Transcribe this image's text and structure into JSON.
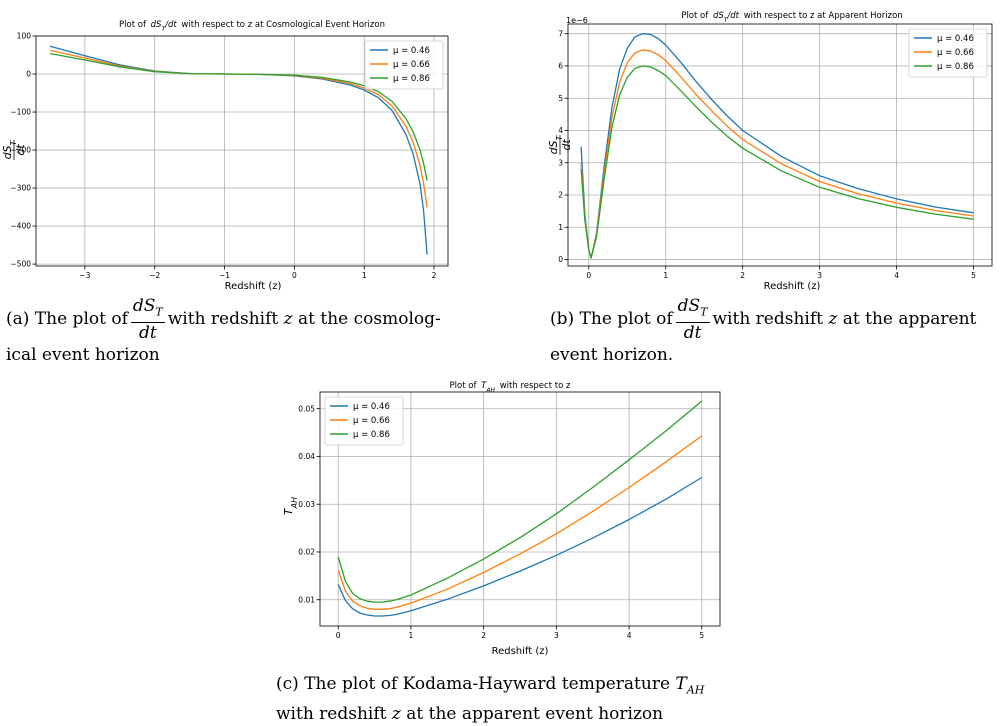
{
  "chart_data": [
    {
      "type": "line",
      "title_prefix": "Plot of",
      "title_sym_num": "dS",
      "title_sym_sub": "T",
      "title_sym_den": "dt",
      "title_suffix": "with respect to z at Cosmological Event Horizon",
      "xlabel": "Redshift (z)",
      "ylabel_num": "dS",
      "ylabel_sub": "T",
      "ylabel_den": "dt",
      "xlim": [
        -3.7,
        2.2
      ],
      "ylim": [
        -505,
        100
      ],
      "xticks": [
        -3,
        -2,
        -1,
        0,
        1,
        2
      ],
      "xtick_labels": [
        "−3",
        "−2",
        "−1",
        "0",
        "1",
        "2"
      ],
      "yticks": [
        100,
        0,
        -100,
        -200,
        -300,
        -400,
        -500
      ],
      "ytick_labels": [
        "100",
        "0",
        "−100",
        "−200",
        "−300",
        "−400",
        "−500"
      ],
      "grid": true,
      "legend_position": "upper right",
      "series": [
        {
          "name": "μ = 0.46",
          "color": "#1f77b4",
          "x": [
            -3.5,
            -3.0,
            -2.5,
            -2.0,
            -1.5,
            -1.0,
            -0.5,
            0.0,
            0.4,
            0.8,
            1.0,
            1.2,
            1.4,
            1.6,
            1.7,
            1.8,
            1.85,
            1.9
          ],
          "y": [
            73,
            48,
            24,
            8,
            1,
            0,
            -1,
            -5,
            -13,
            -29,
            -42,
            -62,
            -96,
            -160,
            -210,
            -290,
            -360,
            -475
          ]
        },
        {
          "name": "μ = 0.66",
          "color": "#ff7f0e",
          "x": [
            -3.5,
            -3.0,
            -2.5,
            -2.0,
            -1.5,
            -1.0,
            -0.5,
            0.0,
            0.4,
            0.8,
            1.0,
            1.2,
            1.4,
            1.6,
            1.7,
            1.8,
            1.85,
            1.9
          ],
          "y": [
            62,
            42,
            21,
            7,
            1,
            0,
            -1,
            -4,
            -11,
            -25,
            -37,
            -54,
            -84,
            -138,
            -180,
            -240,
            -288,
            -350
          ]
        },
        {
          "name": "μ = 0.86",
          "color": "#2ca02c",
          "x": [
            -3.5,
            -3.0,
            -2.5,
            -2.0,
            -1.5,
            -1.0,
            -0.5,
            0.0,
            0.4,
            0.8,
            1.0,
            1.2,
            1.4,
            1.6,
            1.7,
            1.8,
            1.85,
            1.9
          ],
          "y": [
            54,
            37,
            19,
            6,
            1,
            0,
            -1,
            -3,
            -9,
            -21,
            -31,
            -46,
            -72,
            -118,
            -152,
            -200,
            -235,
            -280
          ]
        }
      ]
    },
    {
      "type": "line",
      "title_prefix": "Plot of",
      "title_sym_num": "dS",
      "title_sym_sub": "T",
      "title_sym_den": "dt",
      "title_suffix": "with respect to z at Apparent Horizon",
      "xlabel": "Redshift (z)",
      "ylabel_num": "dS",
      "ylabel_sub": "T",
      "ylabel_den": "dt",
      "offset_text": "1e−6",
      "xlim": [
        -0.27,
        5.24
      ],
      "ylim": [
        -0.2,
        7.3
      ],
      "xticks": [
        0,
        1,
        2,
        3,
        4,
        5
      ],
      "xtick_labels": [
        "0",
        "1",
        "2",
        "3",
        "4",
        "5"
      ],
      "yticks": [
        0,
        1,
        2,
        3,
        4,
        5,
        6,
        7
      ],
      "ytick_labels": [
        "0",
        "1",
        "2",
        "3",
        "4",
        "5",
        "6",
        "7"
      ],
      "grid": true,
      "legend_position": "upper right",
      "series": [
        {
          "name": "μ = 0.46",
          "color": "#1f77b4",
          "x": [
            -0.1,
            -0.05,
            0.0,
            0.03,
            0.1,
            0.2,
            0.3,
            0.4,
            0.5,
            0.6,
            0.7,
            0.8,
            0.9,
            1.0,
            1.2,
            1.4,
            1.6,
            1.8,
            2.0,
            2.5,
            3.0,
            3.5,
            4.0,
            4.5,
            5.0
          ],
          "y": [
            3.5,
            1.4,
            0.3,
            0.05,
            0.8,
            2.9,
            4.7,
            5.9,
            6.55,
            6.9,
            7.0,
            6.98,
            6.85,
            6.65,
            6.1,
            5.5,
            4.95,
            4.45,
            4.0,
            3.2,
            2.6,
            2.2,
            1.88,
            1.63,
            1.45
          ]
        },
        {
          "name": "μ = 0.66",
          "color": "#ff7f0e",
          "x": [
            -0.1,
            -0.05,
            0.0,
            0.03,
            0.1,
            0.2,
            0.3,
            0.4,
            0.5,
            0.6,
            0.7,
            0.8,
            0.9,
            1.0,
            1.2,
            1.4,
            1.6,
            1.8,
            2.0,
            2.5,
            3.0,
            3.5,
            4.0,
            4.5,
            5.0
          ],
          "y": [
            3.0,
            1.3,
            0.3,
            0.05,
            0.75,
            2.7,
            4.4,
            5.5,
            6.1,
            6.4,
            6.5,
            6.47,
            6.35,
            6.17,
            5.65,
            5.1,
            4.6,
            4.13,
            3.72,
            2.97,
            2.42,
            2.04,
            1.75,
            1.52,
            1.35
          ]
        },
        {
          "name": "μ = 0.86",
          "color": "#2ca02c",
          "x": [
            -0.1,
            -0.05,
            0.0,
            0.03,
            0.1,
            0.2,
            0.3,
            0.4,
            0.5,
            0.6,
            0.7,
            0.8,
            0.9,
            1.0,
            1.2,
            1.4,
            1.6,
            1.8,
            2.0,
            2.5,
            3.0,
            3.5,
            4.0,
            4.5,
            5.0
          ],
          "y": [
            2.8,
            1.2,
            0.3,
            0.05,
            0.7,
            2.5,
            4.1,
            5.1,
            5.65,
            5.92,
            6.0,
            5.97,
            5.86,
            5.7,
            5.22,
            4.72,
            4.25,
            3.82,
            3.45,
            2.75,
            2.24,
            1.89,
            1.62,
            1.41,
            1.25
          ]
        }
      ]
    },
    {
      "type": "line",
      "title_prefix": "Plot of",
      "title_sym": "T",
      "title_sym_sub": "AH",
      "title_suffix": "with respect to z",
      "xlabel": "Redshift (z)",
      "ylabel": "T",
      "ylabel_sub": "AH",
      "xlim": [
        -0.25,
        5.25
      ],
      "ylim": [
        0.0045,
        0.0535
      ],
      "xticks": [
        0,
        1,
        2,
        3,
        4,
        5
      ],
      "xtick_labels": [
        "0",
        "1",
        "2",
        "3",
        "4",
        "5"
      ],
      "yticks": [
        0.01,
        0.02,
        0.03,
        0.04,
        0.05
      ],
      "ytick_labels": [
        "0.01",
        "0.02",
        "0.03",
        "0.04",
        "0.05"
      ],
      "grid": true,
      "legend_position": "upper left",
      "series": [
        {
          "name": "μ = 0.46",
          "color": "#1f77b4",
          "x": [
            0.0,
            0.1,
            0.2,
            0.3,
            0.4,
            0.5,
            0.6,
            0.7,
            0.8,
            1.0,
            1.5,
            2.0,
            2.5,
            3.0,
            3.5,
            4.0,
            4.5,
            5.0
          ],
          "y": [
            0.0132,
            0.0098,
            0.0081,
            0.0072,
            0.0068,
            0.0066,
            0.0066,
            0.0067,
            0.0069,
            0.0077,
            0.0101,
            0.0129,
            0.016,
            0.0193,
            0.0229,
            0.0268,
            0.031,
            0.0356
          ]
        },
        {
          "name": "μ = 0.66",
          "color": "#ff7f0e",
          "x": [
            0.0,
            0.1,
            0.2,
            0.3,
            0.4,
            0.5,
            0.6,
            0.7,
            0.8,
            1.0,
            1.5,
            2.0,
            2.5,
            3.0,
            3.5,
            4.0,
            4.5,
            5.0
          ],
          "y": [
            0.0162,
            0.0118,
            0.0097,
            0.0087,
            0.0082,
            0.008,
            0.008,
            0.0081,
            0.0084,
            0.0093,
            0.0122,
            0.0157,
            0.0196,
            0.0238,
            0.0285,
            0.0335,
            0.0388,
            0.0443
          ]
        },
        {
          "name": "μ = 0.86",
          "color": "#2ca02c",
          "x": [
            0.0,
            0.1,
            0.2,
            0.3,
            0.4,
            0.5,
            0.6,
            0.7,
            0.8,
            1.0,
            1.5,
            2.0,
            2.5,
            3.0,
            3.5,
            4.0,
            4.5,
            5.0
          ],
          "y": [
            0.019,
            0.0138,
            0.0113,
            0.0102,
            0.0097,
            0.0095,
            0.0095,
            0.0097,
            0.01,
            0.011,
            0.0145,
            0.0185,
            0.023,
            0.028,
            0.0335,
            0.0393,
            0.0453,
            0.0516
          ]
        }
      ]
    }
  ],
  "captions": {
    "a": {
      "prefix": "(a) The plot of",
      "frac_num": "dS",
      "frac_sub": "T",
      "frac_den": "dt",
      "line1_tail": "with redshift",
      "var": "z",
      "line1_end": "at the cosmolog-",
      "line2": "ical event horizon"
    },
    "b": {
      "prefix": "(b) The plot of",
      "frac_num": "dS",
      "frac_sub": "T",
      "frac_den": "dt",
      "line1_tail": "with redshift",
      "var": "z",
      "line1_end": "at the apparent",
      "line2": "event horizon."
    },
    "c": {
      "line1_pre": "(c) The plot of Kodama-Hayward temperature",
      "sym": "T",
      "sym_sub": "AH",
      "line2_pre": "with redshift",
      "var": "z",
      "line2_end": "at the apparent event horizon"
    }
  }
}
